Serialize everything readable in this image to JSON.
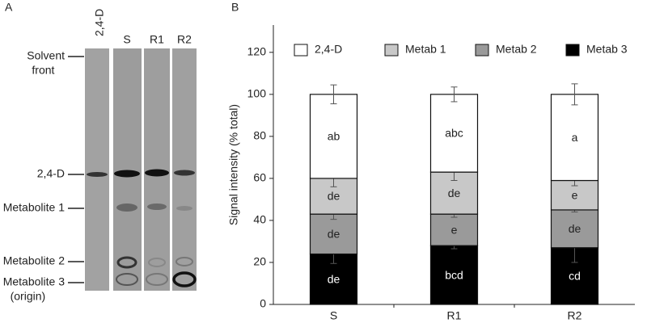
{
  "panel_a": {
    "label": "A",
    "lanes": [
      "2,4-D",
      "S",
      "R1",
      "R2"
    ],
    "bands": [
      [
        "Solvent",
        "front"
      ],
      [
        "2,4-D"
      ],
      [
        "Metabolite 1"
      ],
      [
        "Metabolite 2"
      ],
      [
        "Metabolite 3",
        "(origin)"
      ]
    ]
  },
  "chart_data": {
    "type": "stacked_bar",
    "panel_label": "B",
    "ylabel": "Signal intensity (% total)",
    "categories": [
      "S",
      "R1",
      "R2"
    ],
    "ylim": [
      0,
      133
    ],
    "yticks": [
      0,
      20,
      40,
      60,
      80,
      100,
      120
    ],
    "legend": "top",
    "series": [
      {
        "name": "Metab 3",
        "color": "#000000",
        "values": [
          24,
          28,
          27
        ],
        "errors": [
          4.5,
          1.5,
          7
        ],
        "letters": [
          "de",
          "bcd",
          "cd"
        ]
      },
      {
        "name": "Metab 2",
        "color": "#9a9a9a",
        "values": [
          19,
          15,
          18
        ],
        "errors": [
          2.5,
          1.5,
          1
        ],
        "letters": [
          "de",
          "e",
          "de"
        ]
      },
      {
        "name": "Metab 1",
        "color": "#c8c8c8",
        "values": [
          17,
          20,
          14
        ],
        "errors": [
          4,
          4,
          2.5
        ],
        "letters": [
          "de",
          "de",
          "e"
        ]
      },
      {
        "name": "2,4-D",
        "color": "#ffffff",
        "values": [
          40,
          37,
          41
        ],
        "errors": [
          4.5,
          3.5,
          5
        ],
        "letters": [
          "ab",
          "abc",
          "a"
        ]
      }
    ]
  }
}
